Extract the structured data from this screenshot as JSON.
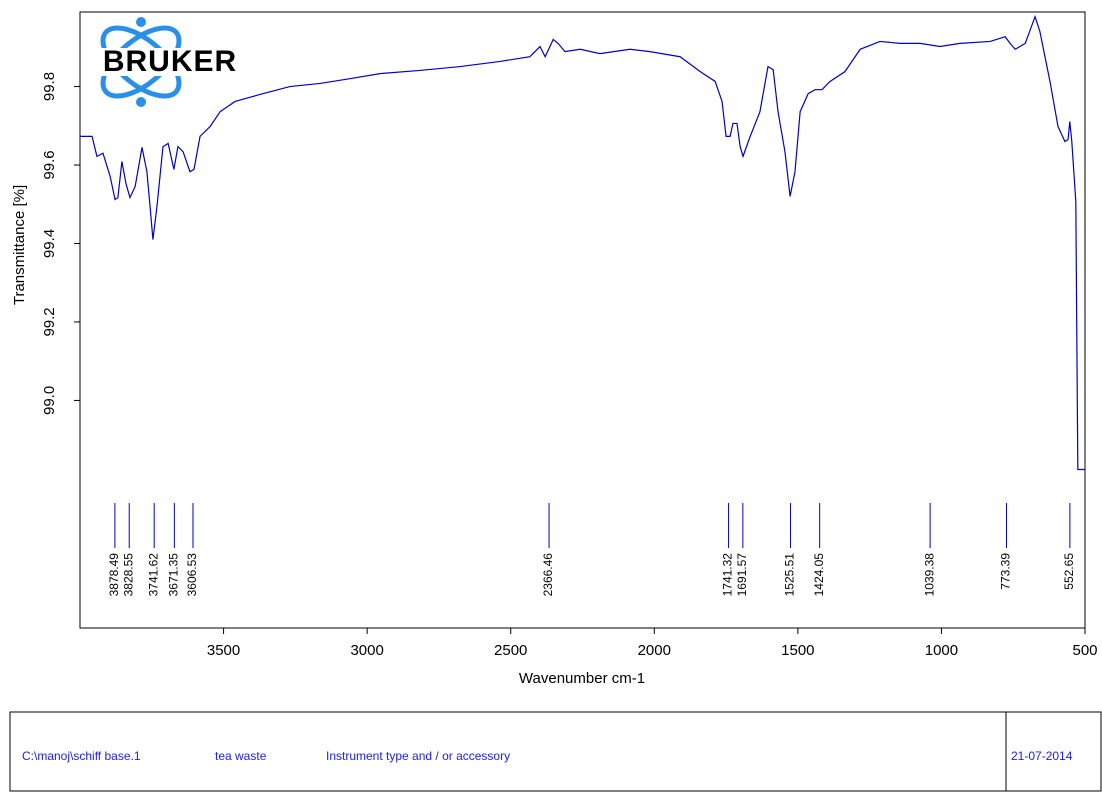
{
  "chart_data": {
    "type": "line",
    "logo": "BRUKER",
    "xlabel": "Wavenumber cm-1",
    "ylabel": "Transmittance [%]",
    "xlim": [
      4000,
      500
    ],
    "ylim": [
      98.42,
      99.99
    ],
    "xticks": [
      3500,
      3000,
      2500,
      2000,
      1500,
      1000,
      500
    ],
    "yticks": [
      {
        "value": 99.0,
        "label": "99.0"
      },
      99.2,
      99.4,
      99.6,
      99.8
    ],
    "series": [
      {
        "color": "#0000cc",
        "x": [
          4000,
          3958,
          3941,
          3920,
          3895,
          3878,
          3868,
          3854,
          3840,
          3826,
          3808,
          3784,
          3767,
          3756,
          3746,
          3732,
          3711,
          3693,
          3673,
          3659,
          3641,
          3617,
          3603,
          3582,
          3547,
          3512,
          3460,
          3373,
          3269,
          3164,
          3060,
          2955,
          2816,
          2676,
          2537,
          2433,
          2398,
          2380,
          2352,
          2335,
          2311,
          2258,
          2189,
          2084,
          2015,
          1910,
          1840,
          1788,
          1764,
          1750,
          1736,
          1726,
          1712,
          1701,
          1691,
          1666,
          1632,
          1604,
          1586,
          1569,
          1545,
          1527,
          1510,
          1492,
          1464,
          1440,
          1416,
          1388,
          1336,
          1283,
          1214,
          1144,
          1074,
          1005,
          935,
          830,
          778,
          761,
          743,
          708,
          674,
          657,
          622,
          594,
          570,
          559,
          553,
          546,
          532,
          525,
          500
        ],
        "values": [
          99.673,
          99.673,
          99.622,
          99.63,
          99.571,
          99.512,
          99.517,
          99.609,
          99.553,
          99.517,
          99.545,
          99.645,
          99.583,
          99.494,
          99.41,
          99.494,
          99.647,
          99.655,
          99.589,
          99.647,
          99.634,
          99.583,
          99.589,
          99.673,
          99.698,
          99.736,
          99.762,
          99.78,
          99.8,
          99.808,
          99.82,
          99.833,
          99.841,
          99.851,
          99.864,
          99.876,
          99.902,
          99.876,
          99.92,
          99.91,
          99.889,
          99.895,
          99.884,
          99.895,
          99.889,
          99.876,
          99.838,
          99.813,
          99.762,
          99.673,
          99.673,
          99.706,
          99.706,
          99.647,
          99.622,
          99.673,
          99.736,
          99.851,
          99.843,
          99.736,
          99.634,
          99.52,
          99.583,
          99.736,
          99.782,
          99.792,
          99.792,
          99.813,
          99.838,
          99.895,
          99.915,
          99.91,
          99.91,
          99.902,
          99.91,
          99.915,
          99.927,
          99.91,
          99.895,
          99.91,
          99.978,
          99.94,
          99.813,
          99.698,
          99.66,
          99.665,
          99.711,
          99.66,
          99.507,
          98.824,
          98.824
        ]
      }
    ],
    "peaks": [
      3878.49,
      3828.55,
      3741.62,
      3671.35,
      3606.53,
      2366.46,
      1741.32,
      1691.57,
      1525.51,
      1424.05,
      1039.38,
      773.39,
      552.65
    ]
  },
  "footer": {
    "file": "C:\\manoj\\schiff base.1",
    "sample": "tea waste",
    "instrument": "Instrument type and / or accessory",
    "date": "21-07-2014"
  }
}
